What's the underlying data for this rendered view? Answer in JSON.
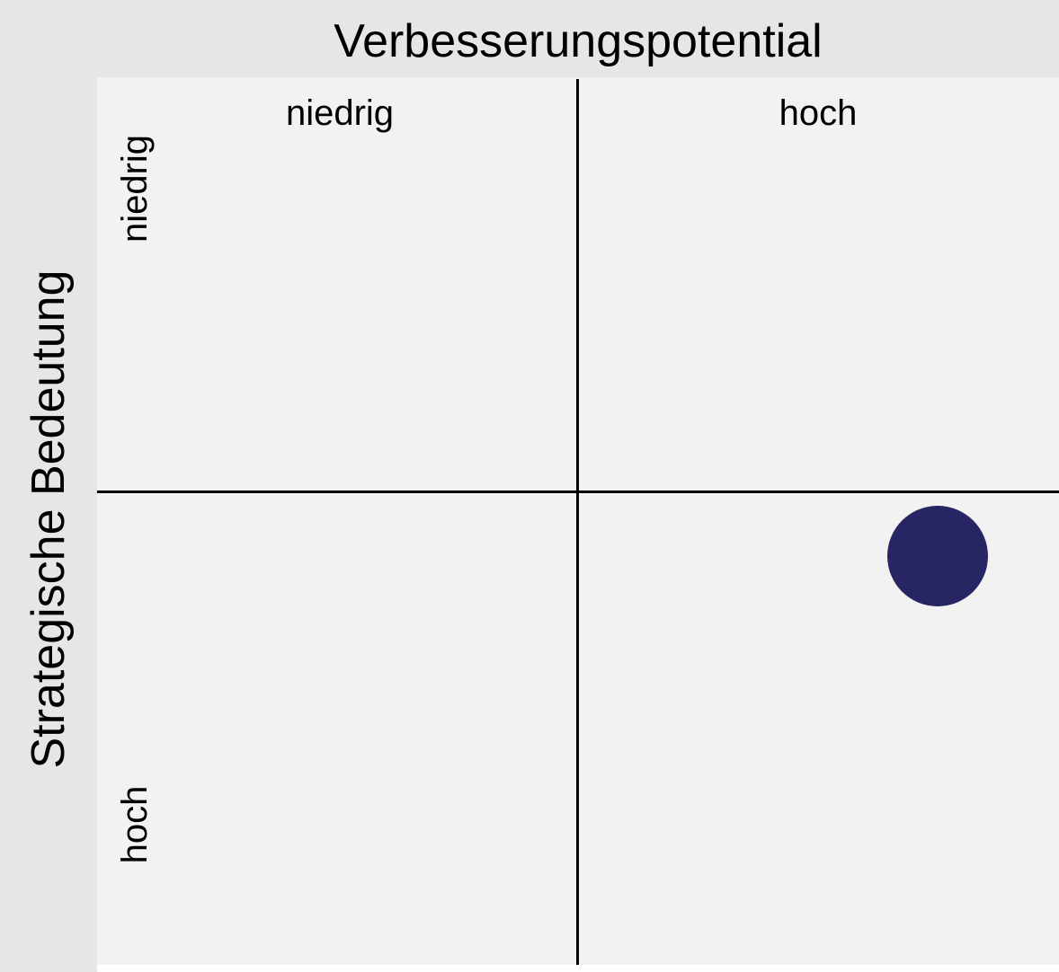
{
  "x_axis": {
    "title": "Verbesserungspotential",
    "low_label": "niedrig",
    "high_label": "hoch"
  },
  "y_axis": {
    "title": "Strategische Bedeutung",
    "low_label": "niedrig",
    "high_label": "hoch"
  },
  "marker": {
    "x_level": "hoch",
    "y_level": "hoch",
    "color": "#272563"
  },
  "colors": {
    "band": "#e6e6e6",
    "matrix_background": "#f2f2f2",
    "divider": "#000000"
  }
}
